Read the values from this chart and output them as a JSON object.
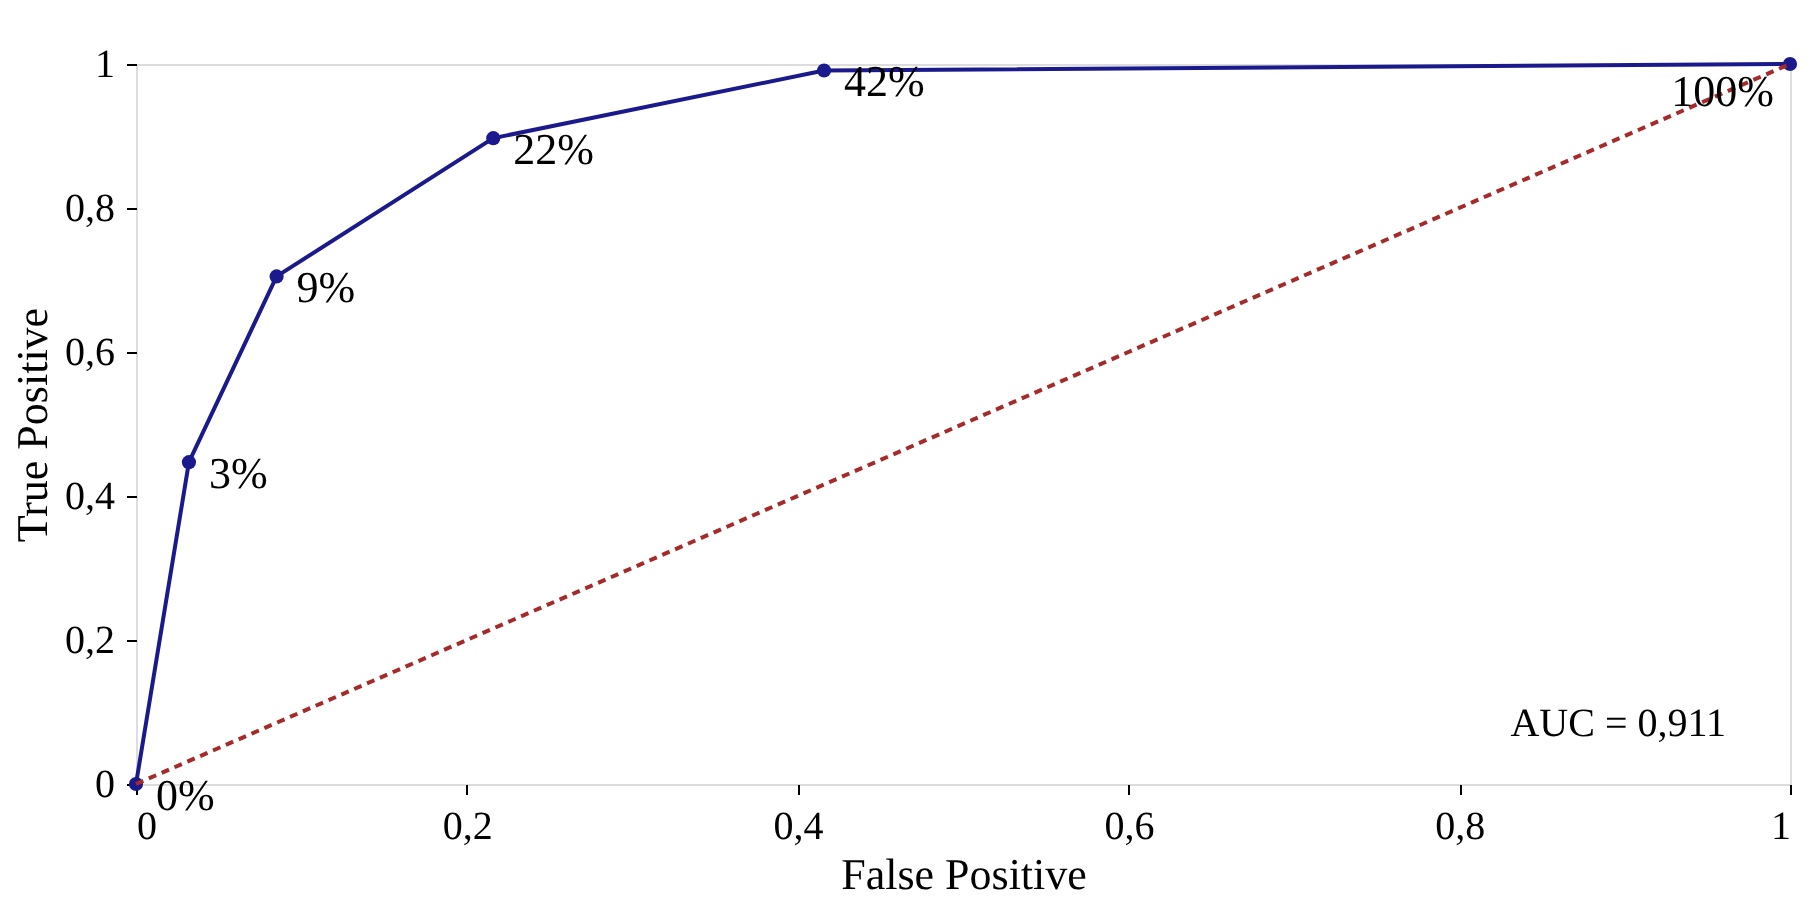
{
  "chart_data": {
    "type": "line",
    "xlabel": "False Positive",
    "ylabel": "True Positive",
    "xlim": [
      0,
      1
    ],
    "ylim": [
      0,
      1
    ],
    "xticks": [
      0,
      {
        "value": 0.2,
        "label": "0,2"
      },
      {
        "value": 0.4,
        "label": "0,4"
      },
      {
        "value": 0.6,
        "label": "0,6"
      },
      {
        "value": 0.8,
        "label": "0,8"
      },
      1
    ],
    "yticks": [
      0,
      {
        "value": 0.2,
        "label": "0,2"
      },
      {
        "value": 0.4,
        "label": "0,4"
      },
      {
        "value": 0.6,
        "label": "0,6"
      },
      {
        "value": 0.8,
        "label": "0,8"
      },
      1
    ],
    "grid": false,
    "series": [
      {
        "color": "#1a1a8c",
        "marker": "circle",
        "line_style": "solid",
        "x": [
          0,
          0.032,
          0.085,
          0.216,
          0.416,
          1
        ],
        "values": [
          0,
          0.447,
          0.705,
          0.897,
          0.991,
          1
        ]
      },
      {
        "color": "#a52a2a",
        "marker": "none",
        "line_style": "dashed",
        "x": [
          0,
          1
        ],
        "values": [
          0,
          1
        ]
      }
    ],
    "annotations": [
      {
        "text": "0%",
        "x": 0,
        "y": 0
      },
      {
        "text": "3%",
        "x": 0.032,
        "y": 0.447
      },
      {
        "text": "9%",
        "x": 0.085,
        "y": 0.705
      },
      {
        "text": "22%",
        "x": 0.216,
        "y": 0.897
      },
      {
        "text": "42%",
        "x": 0.416,
        "y": 0.991
      },
      {
        "text": "100%",
        "x": 1,
        "y": 1
      },
      "AUC = 0,911"
    ]
  }
}
